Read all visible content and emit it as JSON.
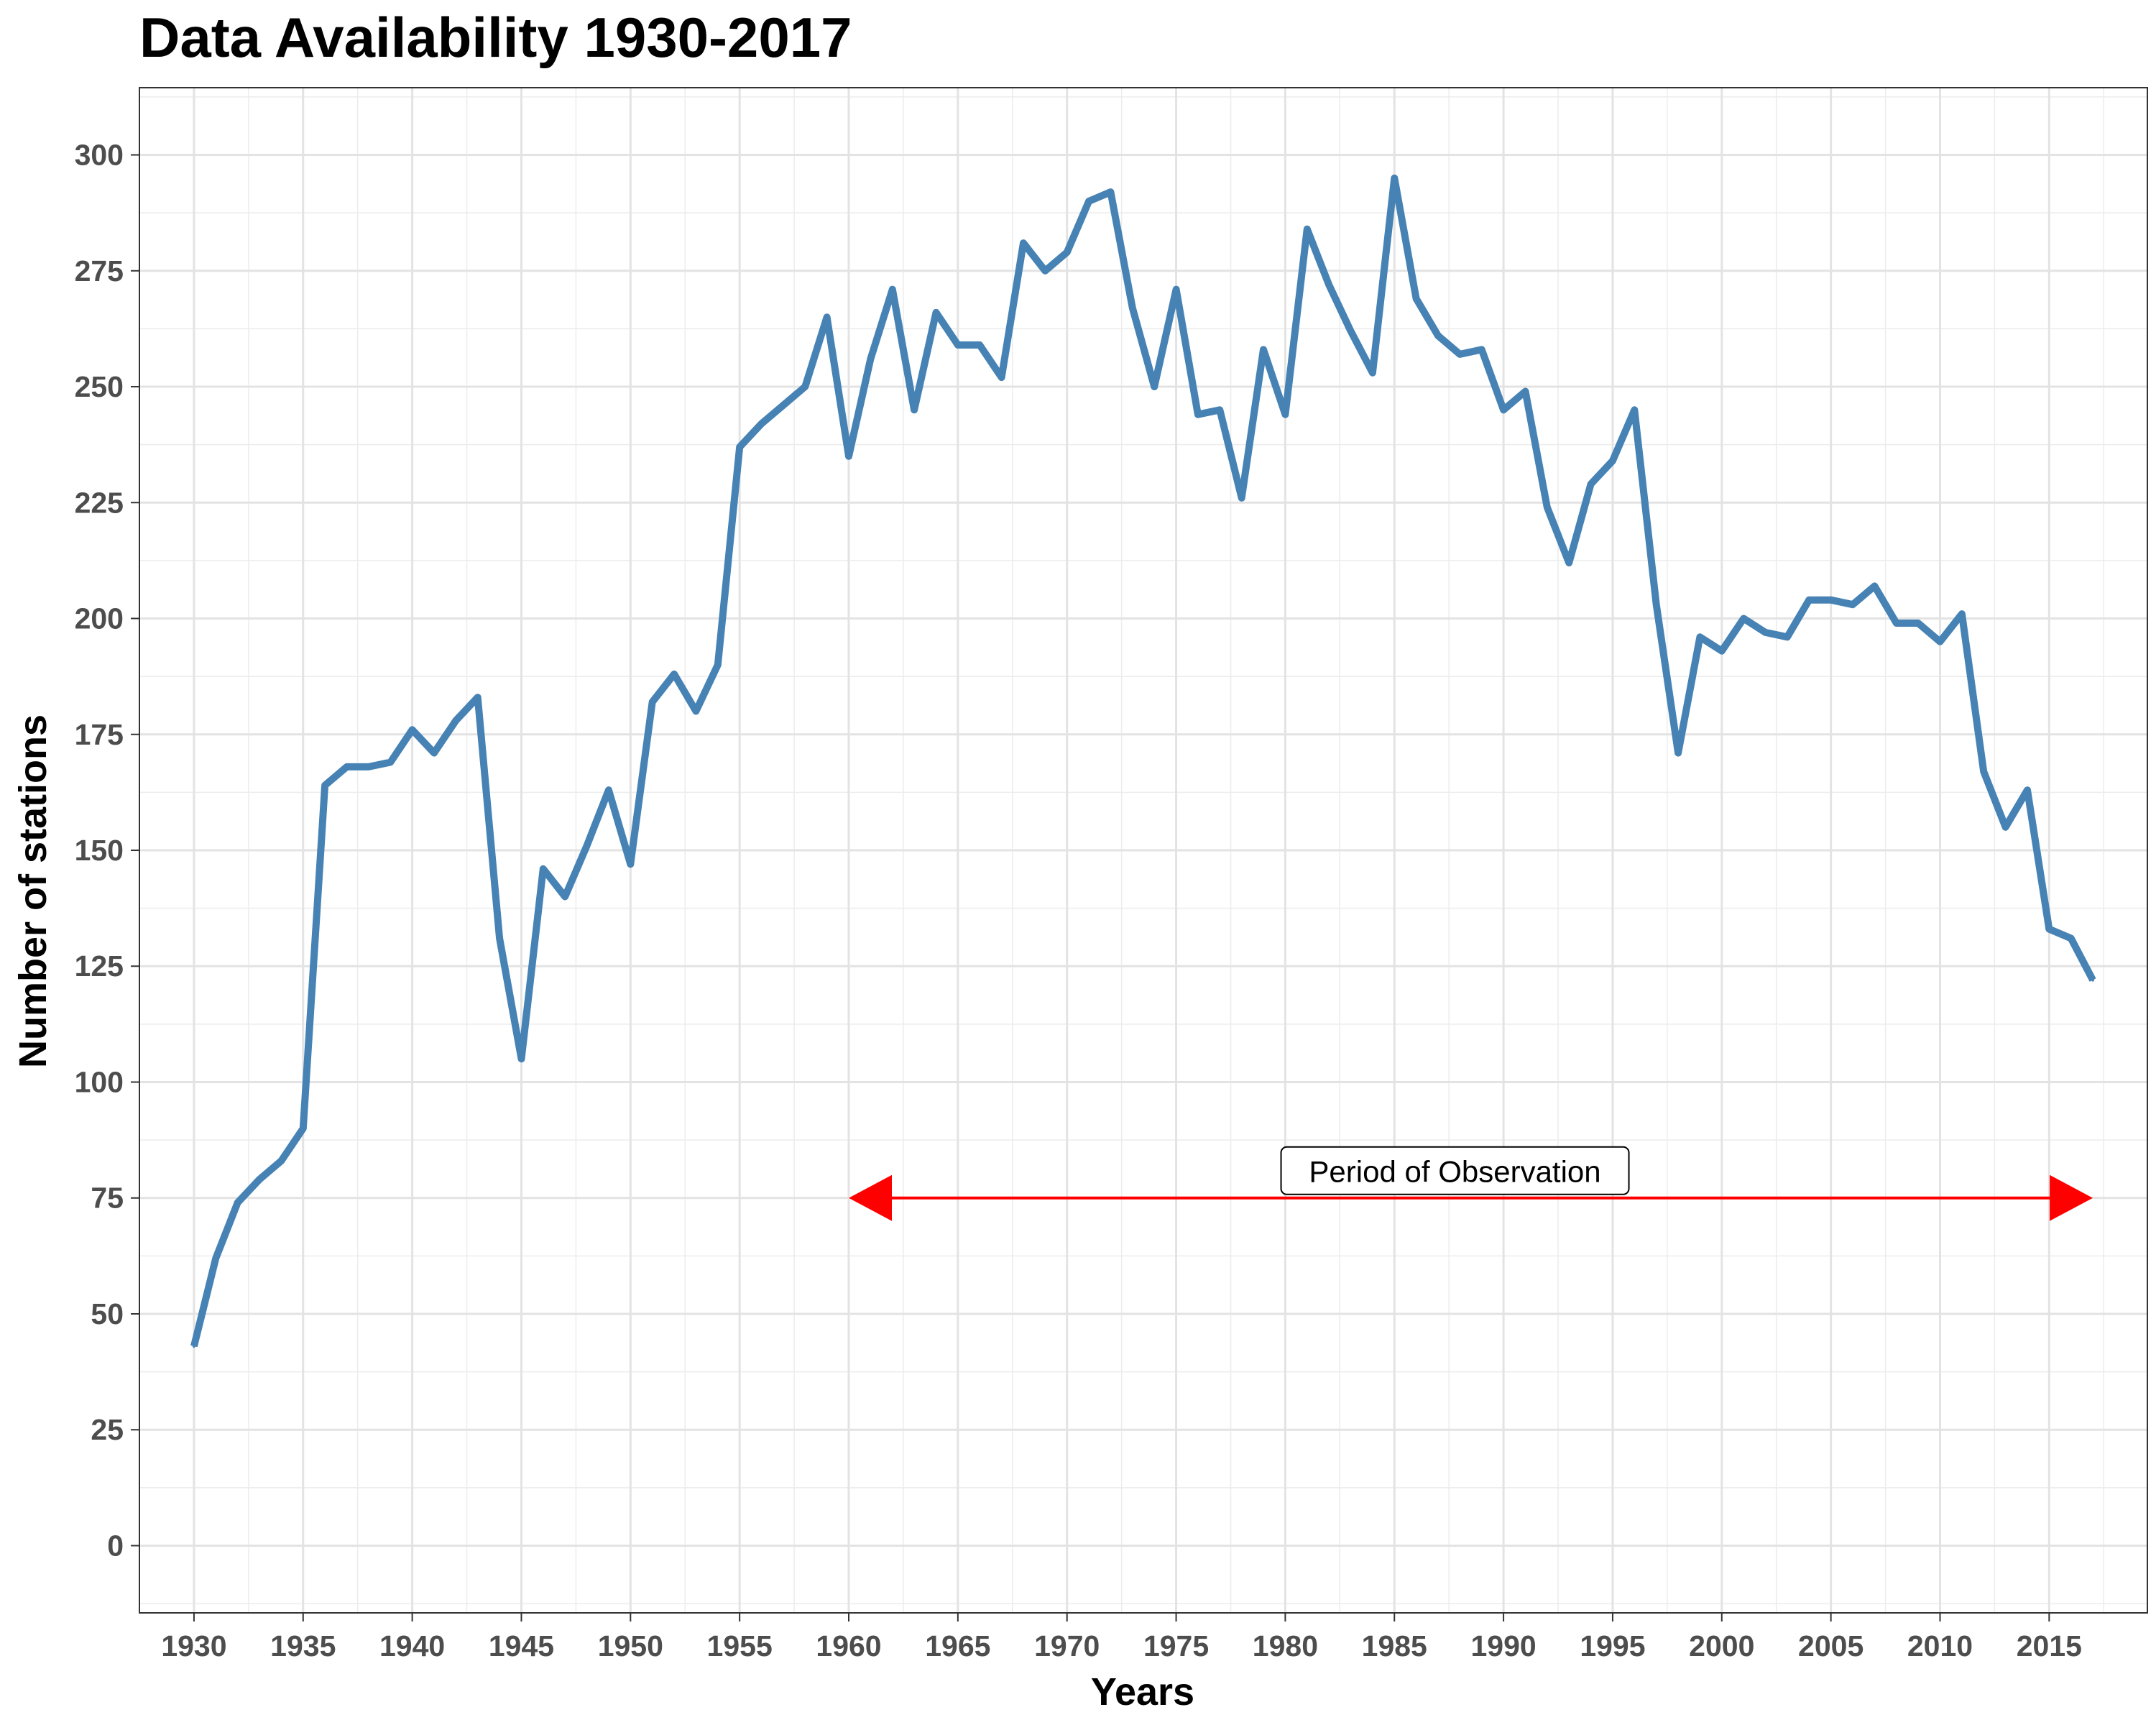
{
  "chart_data": {
    "type": "line",
    "title": "Data Availability 1930-2017",
    "xlabel": "Years",
    "ylabel": "Number of stations",
    "xlim": [
      1927.5,
      2019.5
    ],
    "ylim": [
      -14.5,
      314.5
    ],
    "grid": true,
    "x_ticks": [
      1930,
      1935,
      1940,
      1945,
      1950,
      1955,
      1960,
      1965,
      1970,
      1975,
      1980,
      1985,
      1990,
      1995,
      2000,
      2005,
      2010,
      2015
    ],
    "y_ticks": [
      0,
      25,
      50,
      75,
      100,
      125,
      150,
      175,
      200,
      225,
      250,
      275,
      300
    ],
    "series": [
      {
        "color": "#4682b4",
        "x": [
          1930,
          1931,
          1932,
          1933,
          1934,
          1935,
          1936,
          1937,
          1938,
          1939,
          1940,
          1941,
          1942,
          1943,
          1944,
          1945,
          1946,
          1947,
          1948,
          1949,
          1950,
          1951,
          1952,
          1953,
          1954,
          1955,
          1956,
          1957,
          1958,
          1959,
          1960,
          1961,
          1962,
          1963,
          1964,
          1965,
          1966,
          1967,
          1968,
          1969,
          1970,
          1971,
          1972,
          1973,
          1974,
          1975,
          1976,
          1977,
          1978,
          1979,
          1980,
          1981,
          1982,
          1983,
          1984,
          1985,
          1986,
          1987,
          1988,
          1989,
          1990,
          1991,
          1992,
          1993,
          1994,
          1995,
          1996,
          1997,
          1998,
          1999,
          2000,
          2001,
          2002,
          2003,
          2004,
          2005,
          2006,
          2007,
          2008,
          2009,
          2010,
          2011,
          2012,
          2013,
          2014,
          2015,
          2016,
          2017
        ],
        "y": [
          43,
          62,
          74,
          79,
          83,
          90,
          164,
          168,
          168,
          169,
          176,
          171,
          178,
          183,
          131,
          105,
          146,
          140,
          151,
          163,
          147,
          182,
          188,
          180,
          190,
          237,
          242,
          246,
          250,
          265,
          235,
          256,
          271,
          245,
          266,
          259,
          259,
          252,
          281,
          275,
          279,
          290,
          292,
          267,
          250,
          271,
          244,
          245,
          226,
          258,
          244,
          284,
          272,
          262,
          253,
          295,
          269,
          261,
          257,
          258,
          245,
          249,
          224,
          212,
          229,
          234,
          245,
          203,
          171,
          196,
          193,
          200,
          197,
          196,
          204,
          204,
          203,
          207,
          199,
          199,
          195,
          201,
          167,
          155,
          163,
          133,
          131,
          122
        ]
      }
    ],
    "annotation": {
      "label": "Period of Observation",
      "arrow_start": 1960,
      "arrow_end": 2017,
      "arrow_y": 75,
      "arrow_color": "#ff0000"
    }
  }
}
